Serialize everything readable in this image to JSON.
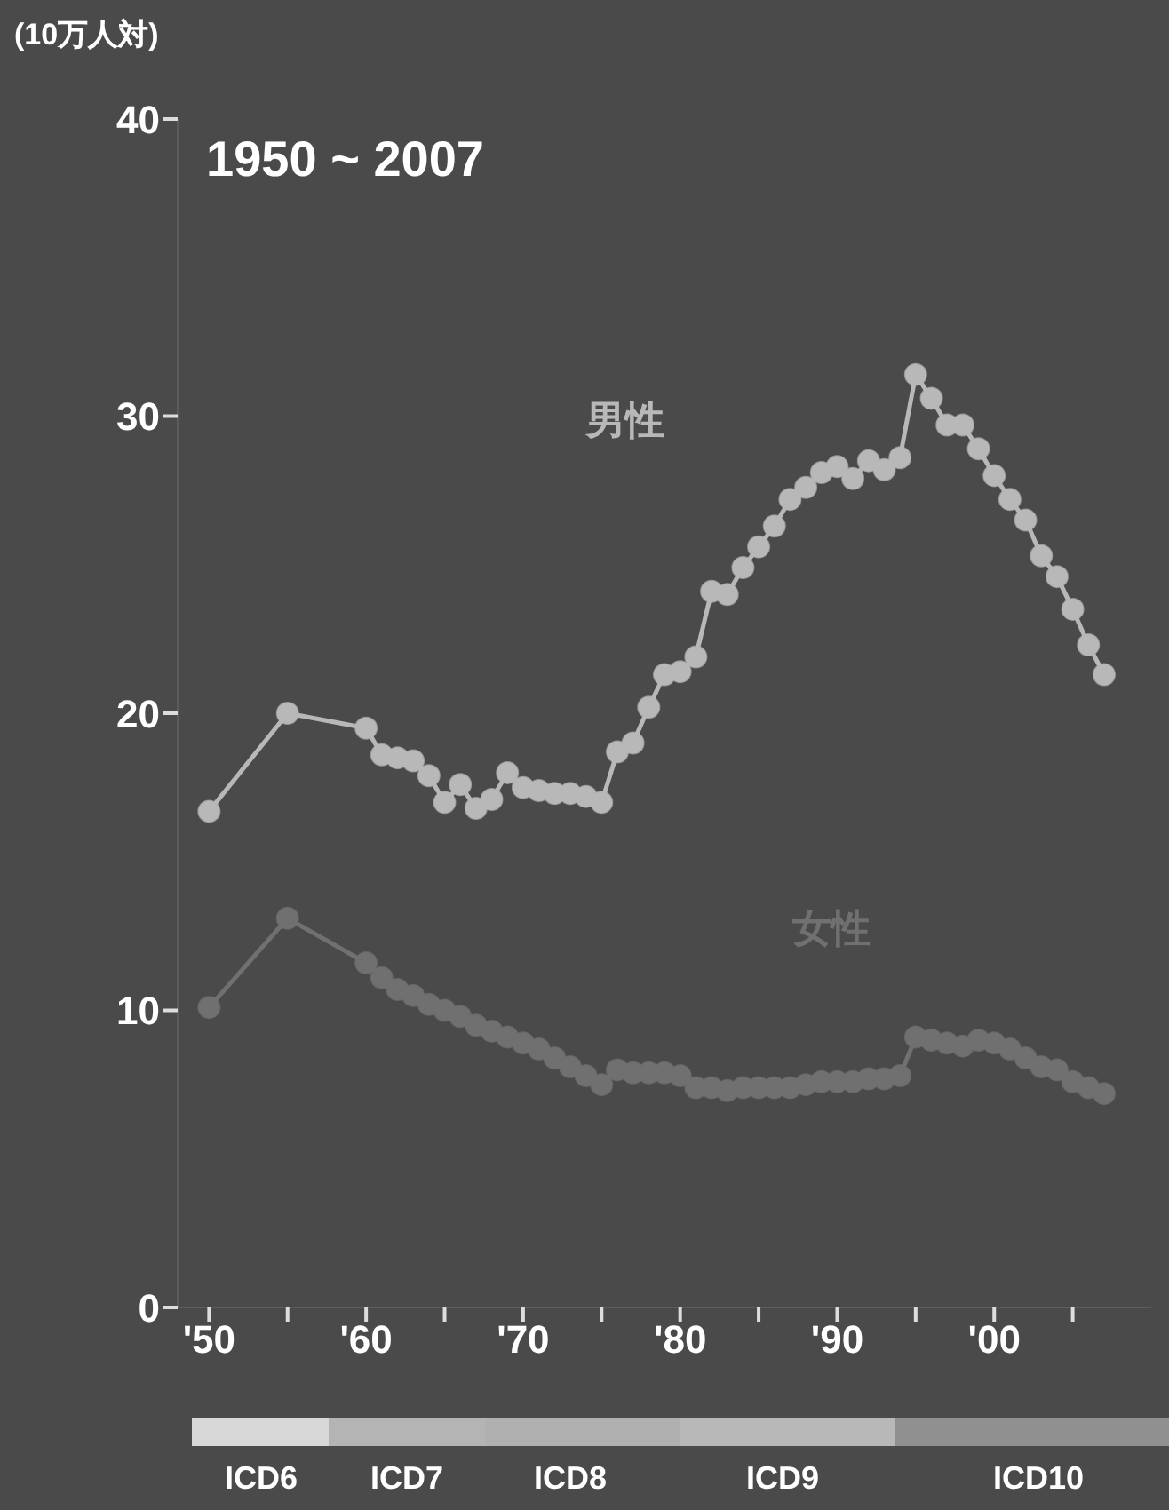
{
  "chart_data": {
    "type": "line",
    "title": "1950 ~ 2007",
    "ylabel": "(10万人対)",
    "x": [
      1950,
      1955,
      1960,
      1961,
      1962,
      1963,
      1964,
      1965,
      1966,
      1967,
      1968,
      1969,
      1970,
      1971,
      1972,
      1973,
      1974,
      1975,
      1976,
      1977,
      1978,
      1979,
      1980,
      1981,
      1982,
      1983,
      1984,
      1985,
      1986,
      1987,
      1988,
      1989,
      1990,
      1991,
      1992,
      1993,
      1994,
      1995,
      1996,
      1997,
      1998,
      1999,
      2000,
      2001,
      2002,
      2003,
      2004,
      2005,
      2006,
      2007
    ],
    "series": [
      {
        "name": "男性",
        "color": "#b8b8b8",
        "values": [
          16.7,
          20.0,
          19.5,
          18.6,
          18.5,
          18.4,
          17.9,
          17.0,
          17.6,
          16.8,
          17.1,
          18.0,
          17.5,
          17.4,
          17.3,
          17.3,
          17.2,
          17.0,
          18.7,
          19.0,
          20.2,
          21.3,
          21.4,
          21.9,
          24.1,
          24.0,
          24.9,
          25.6,
          26.3,
          27.2,
          27.6,
          28.1,
          28.3,
          27.9,
          28.5,
          28.2,
          28.6,
          31.4,
          30.6,
          29.7,
          29.7,
          28.9,
          28.0,
          27.2,
          26.5,
          25.3,
          24.6,
          23.5,
          22.3,
          21.3
        ]
      },
      {
        "name": "女性",
        "color": "#707070",
        "values": [
          10.1,
          13.1,
          11.6,
          11.1,
          10.7,
          10.5,
          10.2,
          10.0,
          9.8,
          9.5,
          9.3,
          9.1,
          8.9,
          8.7,
          8.4,
          8.1,
          7.8,
          7.5,
          8.0,
          7.9,
          7.9,
          7.9,
          7.8,
          7.4,
          7.4,
          7.3,
          7.4,
          7.4,
          7.4,
          7.4,
          7.5,
          7.6,
          7.6,
          7.6,
          7.7,
          7.7,
          7.8,
          9.1,
          9.0,
          8.9,
          8.8,
          9.0,
          8.9,
          8.7,
          8.4,
          8.1,
          8.0,
          7.6,
          7.4,
          7.2
        ]
      }
    ],
    "xlim": [
      1948,
      2010
    ],
    "xticks": [
      {
        "value": 1950,
        "label": "'50"
      },
      {
        "value": 1955,
        "label": null
      },
      {
        "value": 1960,
        "label": "'60"
      },
      {
        "value": 1965,
        "label": null
      },
      {
        "value": 1970,
        "label": "'70"
      },
      {
        "value": 1975,
        "label": null
      },
      {
        "value": 1980,
        "label": "'80"
      },
      {
        "value": 1985,
        "label": null
      },
      {
        "value": 1990,
        "label": "'90"
      },
      {
        "value": 1995,
        "label": null
      },
      {
        "value": 2000,
        "label": "'00"
      },
      {
        "value": 2005,
        "label": null
      }
    ],
    "ylim": [
      0,
      40
    ],
    "yticks": [
      0,
      10,
      20,
      30,
      40
    ],
    "annotations": [
      "ICD6",
      "ICD7",
      "ICD8",
      "ICD9",
      "ICD10"
    ],
    "grid": false,
    "legend": false,
    "marker": "circle",
    "line_style": "solid"
  }
}
